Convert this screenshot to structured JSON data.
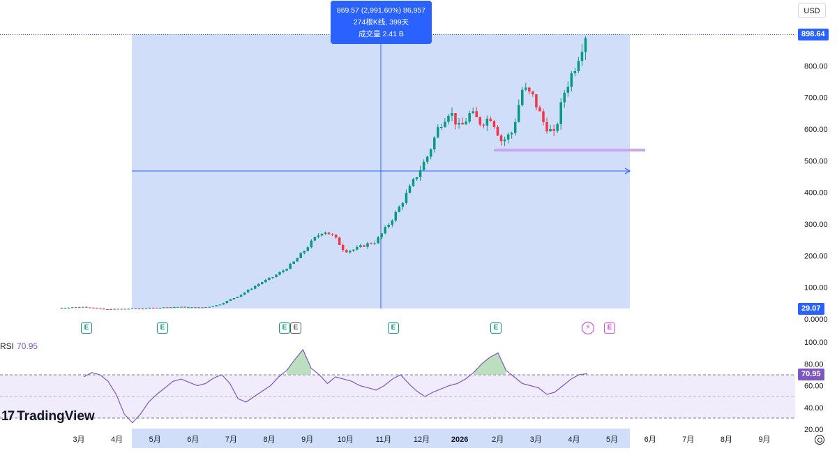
{
  "currency": "USD",
  "tooltip": {
    "line1": "869.57 (2,991.60%) 86,957",
    "line2": "274根K线, 399天",
    "line3": "成交量 2.41 B"
  },
  "last_price_label": "898.64",
  "start_price_label": "29.07",
  "price_axis_labels": [
    "800.00",
    "700.00",
    "600.00",
    "500.00",
    "400.00",
    "300.00",
    "200.00",
    "100.00",
    "0.0000"
  ],
  "rsi": {
    "name": "RSI",
    "value": "70.95"
  },
  "rsi_axis_labels": [
    "100.00",
    "80.00",
    "60.00",
    "40.00",
    "20.00"
  ],
  "time_axis_labels": [
    "3月",
    "4月",
    "5月",
    "6月",
    "7月",
    "8月",
    "9月",
    "10月",
    "11月",
    "12月",
    "2026",
    "2月",
    "3月",
    "4月",
    "5月",
    "6月",
    "7月",
    "8月",
    "9月"
  ],
  "earnings_markers": [
    "E",
    "E",
    "E",
    "E",
    "E",
    "E",
    "E"
  ],
  "logo_text": "TradingView",
  "colors": {
    "up": "#089981",
    "down": "#f23645",
    "accent": "#2962ff",
    "rsi": "#7e57c2",
    "range_fill": "#d1defa"
  },
  "chart_data": {
    "type": "candlestick",
    "series": [
      {
        "name": "price",
        "points": [
          [
            "3月",
            35
          ],
          [
            "3月",
            37
          ],
          [
            "3月",
            38
          ],
          [
            "4月",
            36
          ],
          [
            "4月",
            30
          ],
          [
            "4月",
            31
          ],
          [
            "5月",
            32
          ],
          [
            "5月",
            33
          ],
          [
            "6月",
            34
          ],
          [
            "6月",
            35
          ],
          [
            "7月",
            37
          ],
          [
            "7月",
            38
          ],
          [
            "8月",
            37
          ],
          [
            "8月",
            36
          ],
          [
            "9月",
            38
          ],
          [
            "9月",
            45
          ],
          [
            "9月",
            60
          ],
          [
            "10月",
            75
          ],
          [
            "10月",
            95
          ],
          [
            "10月",
            115
          ],
          [
            "11月",
            130
          ],
          [
            "11月",
            150
          ],
          [
            "11月",
            175
          ],
          [
            "11月",
            210
          ],
          [
            "11月",
            250
          ],
          [
            "11月",
            280
          ],
          [
            "12月",
            260
          ],
          [
            "12月",
            215
          ],
          [
            "12月",
            220
          ],
          [
            "12月",
            235
          ],
          [
            "12月",
            245
          ],
          [
            "12月",
            290
          ],
          [
            "2026",
            340
          ],
          [
            "2026",
            400
          ],
          [
            "2026",
            460
          ],
          [
            "2026",
            520
          ],
          [
            "2月",
            610
          ],
          [
            "2月",
            660
          ],
          [
            "2月",
            600
          ],
          [
            "2月",
            650
          ],
          [
            "3月",
            620
          ],
          [
            "3月",
            640
          ],
          [
            "3月",
            560
          ],
          [
            "3月",
            590
          ],
          [
            "3月",
            730
          ],
          [
            "4月",
            700
          ],
          [
            "4月",
            620
          ],
          [
            "4月",
            580
          ],
          [
            "4月",
            720
          ],
          [
            "4月",
            800
          ],
          [
            "4月",
            898.64
          ]
        ]
      }
    ],
    "range_measure": {
      "change": 869.57,
      "percent": 2991.6,
      "bars": 274,
      "days": 399,
      "volume": "2.41 B"
    },
    "support_level": 530,
    "ylim": [
      0,
      900
    ],
    "rsi_series": [
      68,
      72,
      70,
      64,
      52,
      34,
      26,
      34,
      45,
      52,
      58,
      64,
      66,
      63,
      60,
      62,
      67,
      70,
      62,
      48,
      45,
      50,
      55,
      60,
      68,
      74,
      84,
      93,
      76,
      70,
      62,
      68,
      66,
      64,
      60,
      58,
      56,
      60,
      66,
      70,
      62,
      55,
      50,
      54,
      57,
      60,
      62,
      66,
      72,
      80,
      86,
      90,
      74,
      68,
      62,
      60,
      58,
      52,
      54,
      60,
      66,
      70,
      70.95
    ],
    "rsi_ylim": [
      20,
      100
    ],
    "rsi_bands": [
      30,
      70
    ]
  }
}
